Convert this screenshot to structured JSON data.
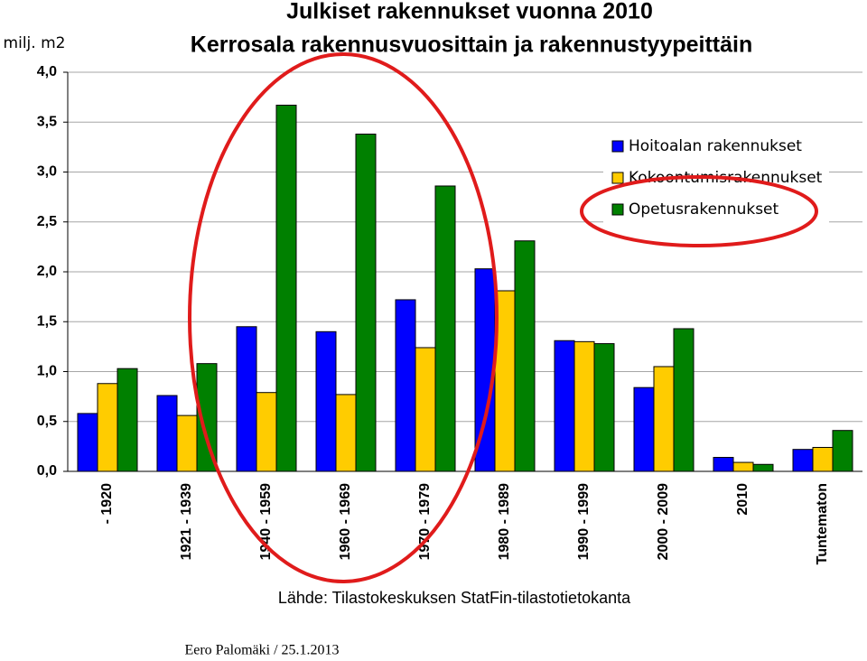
{
  "chart_data": {
    "type": "bar",
    "title": "Julkiset rakennukset vuonna 2010",
    "subtitle": "Kerrosala rakennusvuosittain ja rakennustyypeittäin",
    "y_label": "milj. m2",
    "source": "Lähde: Tilastokeskuksen StatFin-tilastotietokanta",
    "author": "Eero Palomäki / 25.1.2013",
    "categories": [
      "- 1920",
      "1921 - 1939",
      "1940 - 1959",
      "1960 - 1969",
      "1970 - 1979",
      "1980 - 1989",
      "1990 - 1999",
      "2000 - 2009",
      "2010",
      "Tuntematon"
    ],
    "series": [
      {
        "name": "Hoitoalan rakennukset",
        "color": "#0000ff",
        "values": [
          0.58,
          0.76,
          1.45,
          1.4,
          1.72,
          2.03,
          1.31,
          0.84,
          0.14,
          0.22
        ]
      },
      {
        "name": "Kokoontumisrakennukset",
        "color": "#ffcc00",
        "values": [
          0.88,
          0.56,
          0.79,
          0.77,
          1.24,
          1.81,
          1.3,
          1.05,
          0.09,
          0.24
        ]
      },
      {
        "name": "Opetusrakennukset",
        "color": "#008000",
        "values": [
          1.03,
          1.08,
          3.67,
          3.38,
          2.86,
          2.31,
          1.28,
          1.43,
          0.07,
          0.41
        ]
      }
    ],
    "ylim": [
      0,
      4
    ],
    "yticks": [
      {
        "value": 0,
        "label": "0,0"
      },
      {
        "value": 0.5,
        "label": "0,5"
      },
      {
        "value": 1,
        "label": "1,0"
      },
      {
        "value": 1.5,
        "label": "1,5"
      },
      {
        "value": 2,
        "label": "2,0"
      },
      {
        "value": 2.5,
        "label": "2,5"
      },
      {
        "value": 3,
        "label": "3,0"
      },
      {
        "value": 3.5,
        "label": "3,5"
      },
      {
        "value": 4,
        "label": "4,0"
      }
    ],
    "grid": true,
    "legend": "upper-right"
  }
}
